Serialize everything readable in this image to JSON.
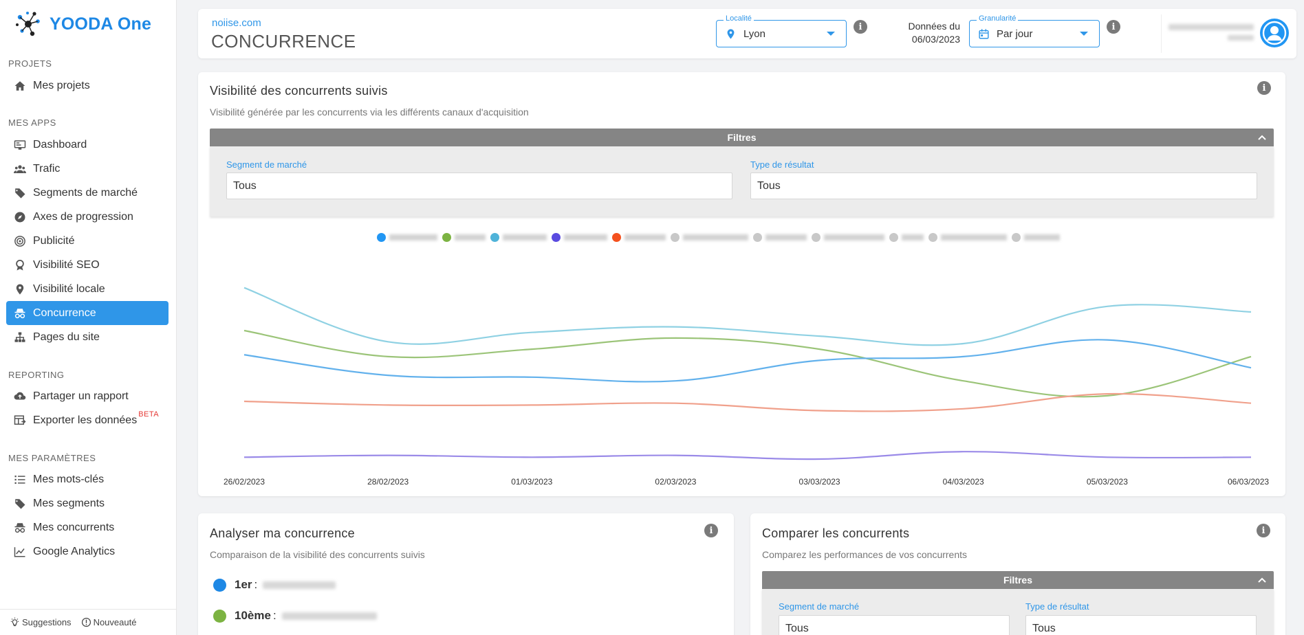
{
  "app": {
    "name": "YOODA One"
  },
  "sidebar": {
    "sections": [
      {
        "title": "PROJETS",
        "items": [
          {
            "label": "Mes projets",
            "icon": "home-icon"
          }
        ]
      },
      {
        "title": "MES APPS",
        "items": [
          {
            "label": "Dashboard",
            "icon": "dashboard-icon"
          },
          {
            "label": "Trafic",
            "icon": "users-icon"
          },
          {
            "label": "Segments de marché",
            "icon": "tag-icon"
          },
          {
            "label": "Axes de progression",
            "icon": "compass-icon"
          },
          {
            "label": "Publicité",
            "icon": "target-icon"
          },
          {
            "label": "Visibilité SEO",
            "icon": "award-icon"
          },
          {
            "label": "Visibilité locale",
            "icon": "map-pin-icon"
          },
          {
            "label": "Concurrence",
            "icon": "spy-icon",
            "active": true
          },
          {
            "label": "Pages du site",
            "icon": "sitemap-icon"
          }
        ]
      },
      {
        "title": "REPORTING",
        "items": [
          {
            "label": "Partager un rapport",
            "icon": "cloud-upload-icon"
          },
          {
            "label": "Exporter les données",
            "icon": "table-export-icon",
            "badge": "BETA"
          }
        ]
      },
      {
        "title": "MES PARAMÈTRES",
        "items": [
          {
            "label": "Mes mots-clés",
            "icon": "list-icon"
          },
          {
            "label": "Mes segments",
            "icon": "tags-icon"
          },
          {
            "label": "Mes concurrents",
            "icon": "spy-icon"
          },
          {
            "label": "Google Analytics",
            "icon": "chart-line-icon"
          }
        ]
      }
    ],
    "footer": {
      "suggestions": "Suggestions",
      "nouveaute": "Nouveauté"
    }
  },
  "header": {
    "site": "noiise.com",
    "title": "CONCURRENCE",
    "localite": {
      "legend": "Localité",
      "value": "Lyon"
    },
    "donnees_label": "Données du",
    "donnees_date": "06/03/2023",
    "granularite": {
      "legend": "Granularité",
      "value": "Par jour"
    }
  },
  "visibility_card": {
    "title": "Visibilité des concurrents suivis",
    "subtitle": "Visibilité générée par les concurrents via les différents canaux d'acquisition",
    "filters_label": "Filtres",
    "segment_label": "Segment de marché",
    "segment_value": "Tous",
    "type_label": "Type de résultat",
    "type_value": "Tous",
    "legend_colors": [
      "#2196f3",
      "#7cb342",
      "#4fb3d9",
      "#5a4be0",
      "#f4511e",
      "#c8c8c8",
      "#c8c8c8",
      "#c8c8c8",
      "#c8c8c8",
      "#c8c8c8",
      "#c8c8c8"
    ]
  },
  "chart_data": {
    "type": "line",
    "x": [
      "26/02/2023",
      "28/02/2023",
      "01/03/2023",
      "02/03/2023",
      "03/03/2023",
      "04/03/2023",
      "05/03/2023",
      "06/03/2023"
    ],
    "ylim": [
      0,
      100
    ],
    "grid": false,
    "legend": "top-center",
    "series": [
      {
        "color": "#8fd1e3",
        "values": [
          92,
          63,
          68,
          71,
          66,
          62,
          82,
          79
        ]
      },
      {
        "color": "#9bc478",
        "values": [
          69,
          55,
          59,
          65,
          59,
          42,
          34,
          55
        ]
      },
      {
        "color": "#62b1ec",
        "values": [
          56,
          45,
          44,
          42,
          53,
          55,
          64,
          49
        ]
      },
      {
        "color": "#f0a08b",
        "values": [
          31,
          29,
          29,
          30,
          26,
          27,
          35,
          30
        ]
      },
      {
        "color": "#9a8ae8",
        "values": [
          1,
          2,
          1,
          2,
          0,
          4,
          1,
          1
        ]
      }
    ]
  },
  "analyse_card": {
    "title": "Analyser ma concurrence",
    "subtitle": "Comparaison de la visibilité des concurrents suivis",
    "ranks": [
      {
        "label": "1er",
        "color": "#1e88e5"
      },
      {
        "label": "10ème",
        "color": "#7cb342"
      }
    ]
  },
  "compare_card": {
    "title": "Comparer les concurrents",
    "subtitle": "Comparez les performances de vos concurrents",
    "filters_label": "Filtres",
    "segment_label": "Segment de marché",
    "segment_value": "Tous",
    "type_label": "Type de résultat",
    "type_value": "Tous"
  }
}
